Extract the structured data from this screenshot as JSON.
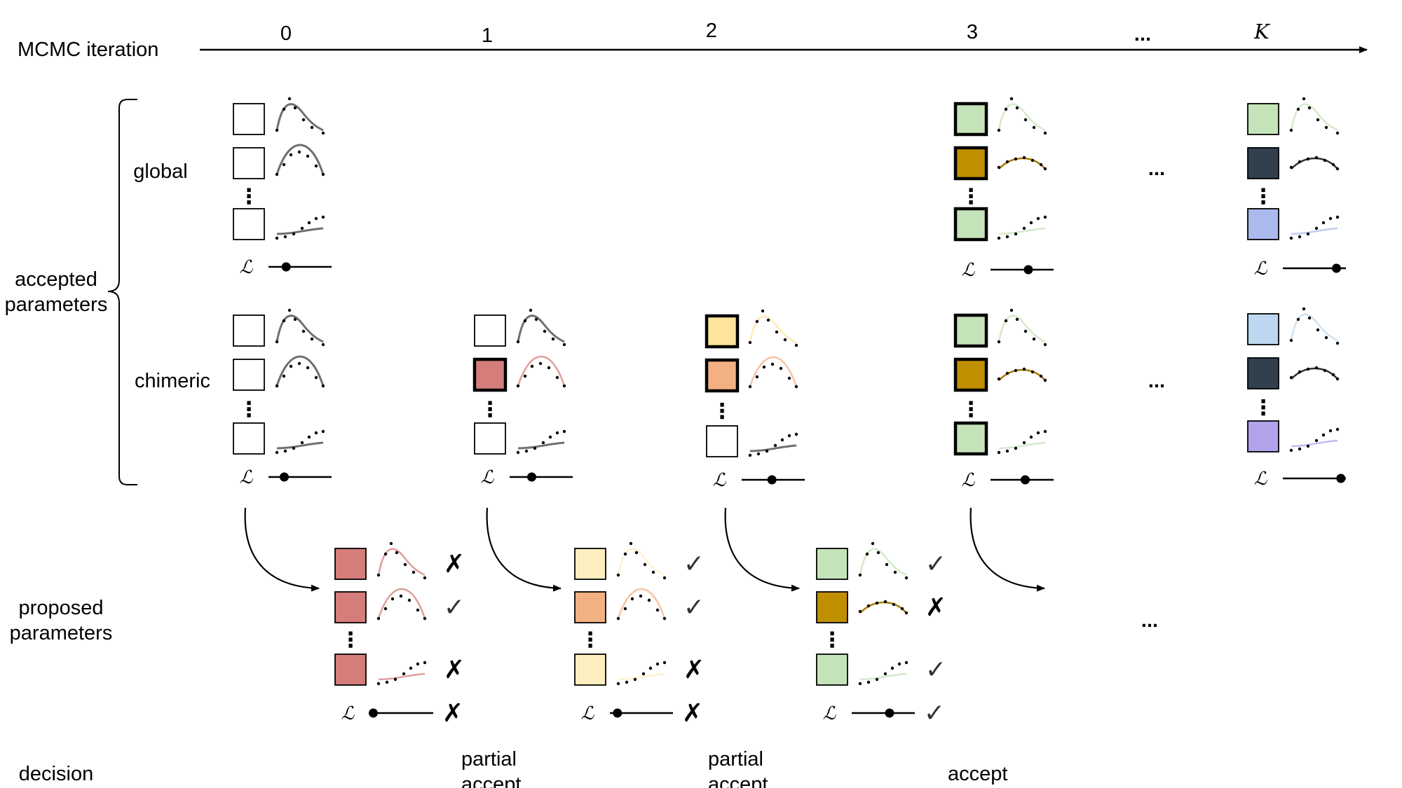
{
  "labels": {
    "iteration_axis": "MCMC iteration",
    "accepted": [
      "accepted",
      "parameters"
    ],
    "global": "global",
    "chimeric": "chimeric",
    "proposed": [
      "proposed",
      "parameters"
    ],
    "decision": "decision",
    "likelihood_symbol": "ℒ",
    "ellipsis": "...",
    "vertical_dots": "⋮"
  },
  "iterations": [
    "0",
    "1",
    "2",
    "3",
    "...",
    "K"
  ],
  "decisions": [
    {
      "iteration": "1",
      "lines": [
        "partial",
        "accept"
      ]
    },
    {
      "iteration": "2",
      "lines": [
        "partial",
        "accept"
      ]
    },
    {
      "iteration": "3",
      "lines": [
        "accept"
      ]
    }
  ],
  "colors": {
    "white": "#ffffff",
    "red": "#d57d7b",
    "light_yellow": "#fdeebf",
    "yellow": "#fde49a",
    "peach": "#f2b083",
    "green": "#c5e3b8",
    "gold": "#bf8f00",
    "navy": "#323f4f",
    "periwinkle": "#abb9ec",
    "light_blue": "#bcd7ef",
    "lavender": "#b3a2ec"
  },
  "accepted_states": [
    {
      "iteration": "0",
      "global": {
        "params": [
          {
            "color": "white",
            "curve": "peak",
            "bold": false
          },
          {
            "color": "white",
            "curve": "hill",
            "bold": false
          },
          {
            "color": "white",
            "curve": "sigmoid",
            "bold": false
          }
        ],
        "likelihood": 0.28
      },
      "chimeric": {
        "params": [
          {
            "color": "white",
            "curve": "peak",
            "bold": false
          },
          {
            "color": "white",
            "curve": "hill",
            "bold": false
          },
          {
            "color": "white",
            "curve": "sigmoid",
            "bold": false
          }
        ],
        "likelihood": 0.25
      }
    },
    {
      "iteration": "1",
      "chimeric": {
        "params": [
          {
            "color": "white",
            "curve": "peak",
            "bold": false
          },
          {
            "color": "red",
            "curve": "hill",
            "bold": true
          },
          {
            "color": "white",
            "curve": "sigmoid",
            "bold": false
          }
        ],
        "likelihood": 0.35
      }
    },
    {
      "iteration": "2",
      "chimeric": {
        "params": [
          {
            "color": "yellow",
            "curve": "peak",
            "bold": true
          },
          {
            "color": "peach",
            "curve": "hill",
            "bold": true
          },
          {
            "color": "white",
            "curve": "sigmoid",
            "bold": false
          }
        ],
        "likelihood": 0.48
      }
    },
    {
      "iteration": "3",
      "global": {
        "params": [
          {
            "color": "green",
            "curve": "peak",
            "bold": true
          },
          {
            "color": "gold",
            "curve": "flat",
            "bold": true
          },
          {
            "color": "green",
            "curve": "sigmoid",
            "bold": true
          }
        ],
        "likelihood": 0.6
      },
      "chimeric": {
        "params": [
          {
            "color": "green",
            "curve": "peak",
            "bold": true
          },
          {
            "color": "gold",
            "curve": "flat",
            "bold": true
          },
          {
            "color": "green",
            "curve": "sigmoid",
            "bold": true
          }
        ],
        "likelihood": 0.55
      }
    },
    {
      "iteration": "K",
      "global": {
        "params": [
          {
            "color": "green",
            "curve": "peak",
            "bold": false
          },
          {
            "color": "navy",
            "curve": "flat",
            "bold": false
          },
          {
            "color": "periwinkle",
            "curve": "sigmoid",
            "bold": false
          }
        ],
        "likelihood": 0.85
      },
      "chimeric": {
        "params": [
          {
            "color": "light_blue",
            "curve": "peak",
            "bold": false
          },
          {
            "color": "navy",
            "curve": "flat",
            "bold": false
          },
          {
            "color": "lavender",
            "curve": "sigmoid",
            "bold": false
          }
        ],
        "likelihood": 0.92
      }
    }
  ],
  "proposals": [
    {
      "iteration": "1",
      "params": [
        {
          "color": "red",
          "curve": "peak",
          "decision": "reject"
        },
        {
          "color": "red",
          "curve": "hill",
          "decision": "accept"
        },
        {
          "color": "red",
          "curve": "sigmoid",
          "decision": "reject"
        }
      ],
      "likelihood": 0.05,
      "likelihood_decision": "reject"
    },
    {
      "iteration": "2",
      "params": [
        {
          "color": "light_yellow",
          "curve": "peak",
          "decision": "accept"
        },
        {
          "color": "peach",
          "curve": "hill",
          "decision": "accept"
        },
        {
          "color": "light_yellow",
          "curve": "sigmoid",
          "decision": "reject"
        }
      ],
      "likelihood": 0.12,
      "likelihood_decision": "reject"
    },
    {
      "iteration": "3",
      "params": [
        {
          "color": "green",
          "curve": "peak",
          "decision": "accept"
        },
        {
          "color": "gold",
          "curve": "flat",
          "decision": "reject"
        },
        {
          "color": "green",
          "curve": "sigmoid",
          "decision": "accept"
        }
      ],
      "likelihood": 0.6,
      "likelihood_decision": "accept"
    }
  ]
}
